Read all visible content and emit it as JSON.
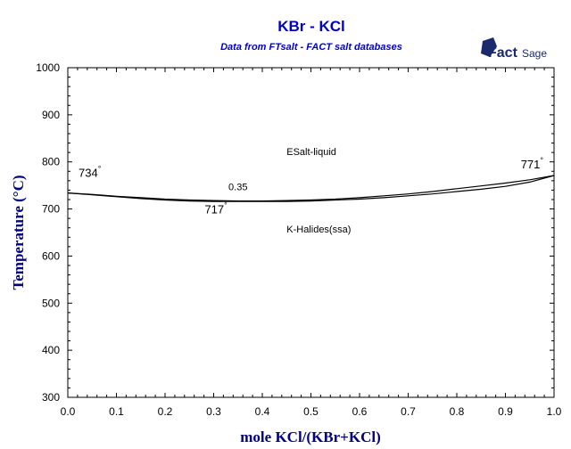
{
  "chart_data": {
    "type": "line",
    "title": "KBr - KCl",
    "subtitle": "Data from FTsalt - FACT salt databases",
    "xlabel": "mole KCl/(KBr+KCl)",
    "ylabel": "Temperature (°C)",
    "xlim": [
      0,
      1
    ],
    "ylim": [
      300,
      1000
    ],
    "xticks": [
      "0.0",
      "0.1",
      "0.2",
      "0.3",
      "0.4",
      "0.5",
      "0.6",
      "0.7",
      "0.8",
      "0.9",
      "1.0"
    ],
    "yticks": [
      "300",
      "400",
      "500",
      "600",
      "700",
      "800",
      "900",
      "1000"
    ],
    "grid": false,
    "series": [
      {
        "x": [
          0.0,
          0.05,
          0.1,
          0.15,
          0.2,
          0.25,
          0.3,
          0.35,
          0.4,
          0.45,
          0.5,
          0.55,
          0.6,
          0.65,
          0.7,
          0.75,
          0.8,
          0.85,
          0.9,
          0.95,
          1.0
        ],
        "y": [
          734,
          731,
          727,
          724,
          721,
          719,
          718,
          717,
          717,
          718,
          719,
          721,
          724,
          728,
          732,
          737,
          743,
          749,
          755,
          762,
          771
        ]
      },
      {
        "x": [
          0.0,
          0.05,
          0.1,
          0.15,
          0.2,
          0.25,
          0.3,
          0.35,
          0.4,
          0.45,
          0.5,
          0.55,
          0.6,
          0.65,
          0.7,
          0.75,
          0.8,
          0.85,
          0.9,
          0.95,
          1.0
        ],
        "y": [
          734,
          730,
          726,
          722,
          719,
          717,
          716,
          716,
          716,
          716,
          717,
          719,
          721,
          724,
          728,
          732,
          737,
          742,
          748,
          757,
          771
        ]
      }
    ],
    "region_labels": [
      {
        "text": "ESalt-liquid",
        "x": 0.45,
        "y": 815
      },
      {
        "text": "K-Halides(ssa)",
        "x": 0.45,
        "y": 650
      }
    ],
    "annotations": [
      {
        "text": "734",
        "x": 0.0,
        "y": 734,
        "deg": "°"
      },
      {
        "text": "0.35",
        "x": 0.35,
        "y": 717
      },
      {
        "text": "717",
        "x": 0.35,
        "y": 717,
        "deg": "°"
      },
      {
        "text": "771",
        "x": 1.0,
        "y": 771,
        "deg": "°"
      }
    ],
    "logo": {
      "fact": "Fact",
      "sage": "Sage"
    }
  }
}
